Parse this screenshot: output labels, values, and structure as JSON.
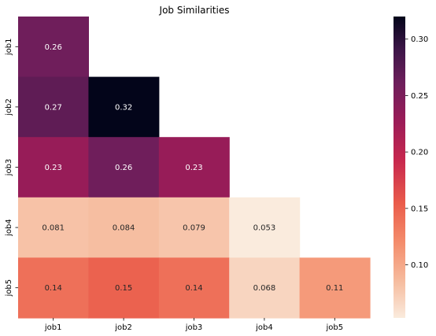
{
  "chart_data": {
    "type": "heatmap",
    "title": "Job Similarities",
    "xlabel": "",
    "ylabel": "",
    "x_categories": [
      "job1",
      "job2",
      "job3",
      "job4",
      "job5"
    ],
    "y_categories": [
      "job1",
      "job2",
      "job3",
      "job4",
      "job5"
    ],
    "mask": "upper-triangle",
    "cells": [
      {
        "row": 0,
        "col": 0,
        "value": 0.26,
        "label": "0.26"
      },
      {
        "row": 1,
        "col": 0,
        "value": 0.27,
        "label": "0.27"
      },
      {
        "row": 1,
        "col": 1,
        "value": 0.32,
        "label": "0.32"
      },
      {
        "row": 2,
        "col": 0,
        "value": 0.23,
        "label": "0.23"
      },
      {
        "row": 2,
        "col": 1,
        "value": 0.26,
        "label": "0.26"
      },
      {
        "row": 2,
        "col": 2,
        "value": 0.23,
        "label": "0.23"
      },
      {
        "row": 3,
        "col": 0,
        "value": 0.081,
        "label": "0.081"
      },
      {
        "row": 3,
        "col": 1,
        "value": 0.084,
        "label": "0.084"
      },
      {
        "row": 3,
        "col": 2,
        "value": 0.079,
        "label": "0.079"
      },
      {
        "row": 3,
        "col": 3,
        "value": 0.053,
        "label": "0.053"
      },
      {
        "row": 4,
        "col": 0,
        "value": 0.14,
        "label": "0.14"
      },
      {
        "row": 4,
        "col": 1,
        "value": 0.15,
        "label": "0.15"
      },
      {
        "row": 4,
        "col": 2,
        "value": 0.14,
        "label": "0.14"
      },
      {
        "row": 4,
        "col": 3,
        "value": 0.068,
        "label": "0.068"
      },
      {
        "row": 4,
        "col": 4,
        "value": 0.11,
        "label": "0.11"
      }
    ],
    "colorbar": {
      "min": 0.053,
      "max": 0.32,
      "ticks": [
        0.1,
        0.15,
        0.2,
        0.25,
        0.3
      ],
      "tick_labels": [
        "0.10",
        "0.15",
        "0.20",
        "0.25",
        "0.30"
      ],
      "colormap": "rocket_r",
      "colormap_stops": [
        {
          "t": 0.0,
          "color": "#faebdd"
        },
        {
          "t": 0.12,
          "color": "#f6bc9f"
        },
        {
          "t": 0.25,
          "color": "#f48d6c"
        },
        {
          "t": 0.38,
          "color": "#ea5c4b"
        },
        {
          "t": 0.52,
          "color": "#c8284e"
        },
        {
          "t": 0.65,
          "color": "#9c1c58"
        },
        {
          "t": 0.78,
          "color": "#6d1e5b"
        },
        {
          "t": 0.89,
          "color": "#3d1648"
        },
        {
          "t": 1.0,
          "color": "#03051a"
        }
      ]
    },
    "grid": false,
    "legend": "colorbar-right"
  }
}
